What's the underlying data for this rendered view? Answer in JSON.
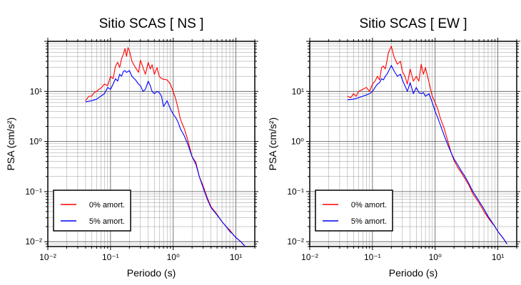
{
  "chart_data": [
    {
      "type": "line",
      "title": "Sitio SCAS [ NS ]",
      "xlabel": "Periodo (s)",
      "ylabel": "PSA (cm/s²)",
      "xscale": "log",
      "yscale": "log",
      "xlim": [
        0.01,
        20
      ],
      "ylim": [
        0.008,
        100
      ],
      "grid": true,
      "legend_position": "bottom-left",
      "x_ticks": [
        "10⁻²",
        "10⁻¹",
        "10⁰",
        "10¹"
      ],
      "y_ticks": [
        "10⁻²",
        "10⁻¹",
        "10⁰",
        "10¹"
      ],
      "series": [
        {
          "name": "0% amort.",
          "color": "#ff0000",
          "x": [
            0.04,
            0.045,
            0.05,
            0.055,
            0.06,
            0.065,
            0.07,
            0.08,
            0.09,
            0.1,
            0.11,
            0.12,
            0.13,
            0.14,
            0.15,
            0.16,
            0.17,
            0.18,
            0.19,
            0.2,
            0.22,
            0.25,
            0.28,
            0.3,
            0.33,
            0.36,
            0.4,
            0.43,
            0.46,
            0.5,
            0.55,
            0.6,
            0.65,
            0.7,
            0.8,
            0.9,
            1.0,
            1.1,
            1.2,
            1.3,
            1.5,
            1.7,
            2.0,
            2.3,
            2.6,
            3.0,
            3.5,
            4.0,
            5.0,
            6.0,
            7.0,
            8.0,
            9.0,
            10.0,
            12.0,
            14.0
          ],
          "y": [
            6.5,
            8,
            8,
            9.5,
            10,
            11,
            11.5,
            14,
            13,
            20,
            18,
            32,
            38,
            30,
            45,
            55,
            72,
            50,
            75,
            65,
            40,
            30,
            24,
            42,
            30,
            22,
            38,
            28,
            34,
            22,
            30,
            20,
            18,
            17.5,
            17,
            14,
            10,
            7,
            4.5,
            2.8,
            1.8,
            1.1,
            0.5,
            0.38,
            0.2,
            0.13,
            0.075,
            0.05,
            0.035,
            0.025,
            0.02,
            0.017,
            0.014,
            0.012,
            0.01,
            0.008
          ]
        },
        {
          "name": "5% amort.",
          "color": "#0000ff",
          "x": [
            0.04,
            0.05,
            0.06,
            0.07,
            0.08,
            0.09,
            0.1,
            0.11,
            0.12,
            0.13,
            0.14,
            0.15,
            0.16,
            0.17,
            0.18,
            0.2,
            0.22,
            0.25,
            0.28,
            0.3,
            0.33,
            0.36,
            0.4,
            0.43,
            0.46,
            0.5,
            0.55,
            0.6,
            0.65,
            0.7,
            0.8,
            0.9,
            1.0,
            1.1,
            1.2,
            1.3,
            1.5,
            1.7,
            2.0,
            2.3,
            2.6,
            3.0,
            3.5,
            4.0,
            5.0,
            6.0,
            7.0,
            8.0,
            9.0,
            10.0,
            12.0,
            14.0
          ],
          "y": [
            6.2,
            6.5,
            7,
            8,
            9,
            12,
            11,
            14,
            18,
            16,
            22,
            20,
            25,
            26,
            24,
            26,
            20,
            17,
            14,
            13,
            10,
            11,
            16,
            13,
            10,
            9,
            10,
            9.5,
            8,
            5,
            6.5,
            4.5,
            3.5,
            3,
            2.4,
            1.8,
            1.3,
            0.9,
            0.5,
            0.35,
            0.2,
            0.12,
            0.07,
            0.048,
            0.034,
            0.025,
            0.02,
            0.016,
            0.014,
            0.012,
            0.01,
            0.008
          ]
        }
      ]
    },
    {
      "type": "line",
      "title": "Sitio SCAS [ EW ]",
      "xlabel": "Periodo (s)",
      "ylabel": "PSA (cm/s²)",
      "xscale": "log",
      "yscale": "log",
      "xlim": [
        0.01,
        20
      ],
      "ylim": [
        0.008,
        100
      ],
      "grid": true,
      "legend_position": "bottom-left",
      "x_ticks": [
        "10⁻²",
        "10⁻¹",
        "10⁰",
        "10¹"
      ],
      "y_ticks": [
        "10⁻²",
        "10⁻¹",
        "10⁰",
        "10¹"
      ],
      "series": [
        {
          "name": "0% amort.",
          "color": "#ff0000",
          "x": [
            0.04,
            0.045,
            0.05,
            0.055,
            0.06,
            0.07,
            0.08,
            0.09,
            0.1,
            0.11,
            0.12,
            0.13,
            0.14,
            0.15,
            0.16,
            0.17,
            0.18,
            0.2,
            0.22,
            0.25,
            0.28,
            0.3,
            0.33,
            0.36,
            0.4,
            0.45,
            0.5,
            0.55,
            0.6,
            0.65,
            0.7,
            0.8,
            0.9,
            1.0,
            1.1,
            1.2,
            1.4,
            1.6,
            1.8,
            2.0,
            2.3,
            2.6,
            3.0,
            3.5,
            4.0,
            5.0,
            6.0,
            7.0,
            8.0,
            9.0,
            10.0,
            12.0,
            14.0
          ],
          "y": [
            8,
            7.5,
            9,
            8,
            10,
            11,
            12,
            10,
            14,
            16,
            20,
            17,
            30,
            32,
            28,
            40,
            60,
            80,
            50,
            35,
            40,
            25,
            20,
            14,
            28,
            16,
            20,
            16,
            35,
            22,
            30,
            15,
            8,
            6,
            4.5,
            3,
            1.8,
            1.0,
            0.6,
            0.42,
            0.3,
            0.24,
            0.18,
            0.13,
            0.09,
            0.06,
            0.04,
            0.03,
            0.024,
            0.02,
            0.016,
            0.012,
            0.009
          ]
        },
        {
          "name": "5% amort.",
          "color": "#0000ff",
          "x": [
            0.04,
            0.05,
            0.06,
            0.07,
            0.08,
            0.09,
            0.1,
            0.11,
            0.12,
            0.13,
            0.14,
            0.15,
            0.16,
            0.17,
            0.18,
            0.2,
            0.22,
            0.25,
            0.28,
            0.3,
            0.33,
            0.36,
            0.4,
            0.45,
            0.5,
            0.55,
            0.6,
            0.65,
            0.7,
            0.8,
            0.9,
            1.0,
            1.1,
            1.2,
            1.4,
            1.6,
            1.8,
            2.0,
            2.3,
            2.6,
            3.0,
            3.5,
            4.0,
            5.0,
            6.0,
            7.0,
            8.0,
            9.0,
            10.0,
            12.0,
            14.0
          ],
          "y": [
            6.8,
            7,
            7.5,
            8,
            8.5,
            9,
            10,
            12,
            14,
            15,
            18,
            17,
            20,
            22,
            25,
            33,
            26,
            20,
            22,
            17,
            13,
            10,
            15,
            9,
            12,
            9.5,
            9,
            9.5,
            8,
            9,
            6,
            4,
            3,
            2.2,
            1.3,
            0.85,
            0.6,
            0.45,
            0.34,
            0.26,
            0.2,
            0.14,
            0.1,
            0.065,
            0.045,
            0.032,
            0.025,
            0.02,
            0.016,
            0.012,
            0.009
          ]
        }
      ]
    }
  ]
}
